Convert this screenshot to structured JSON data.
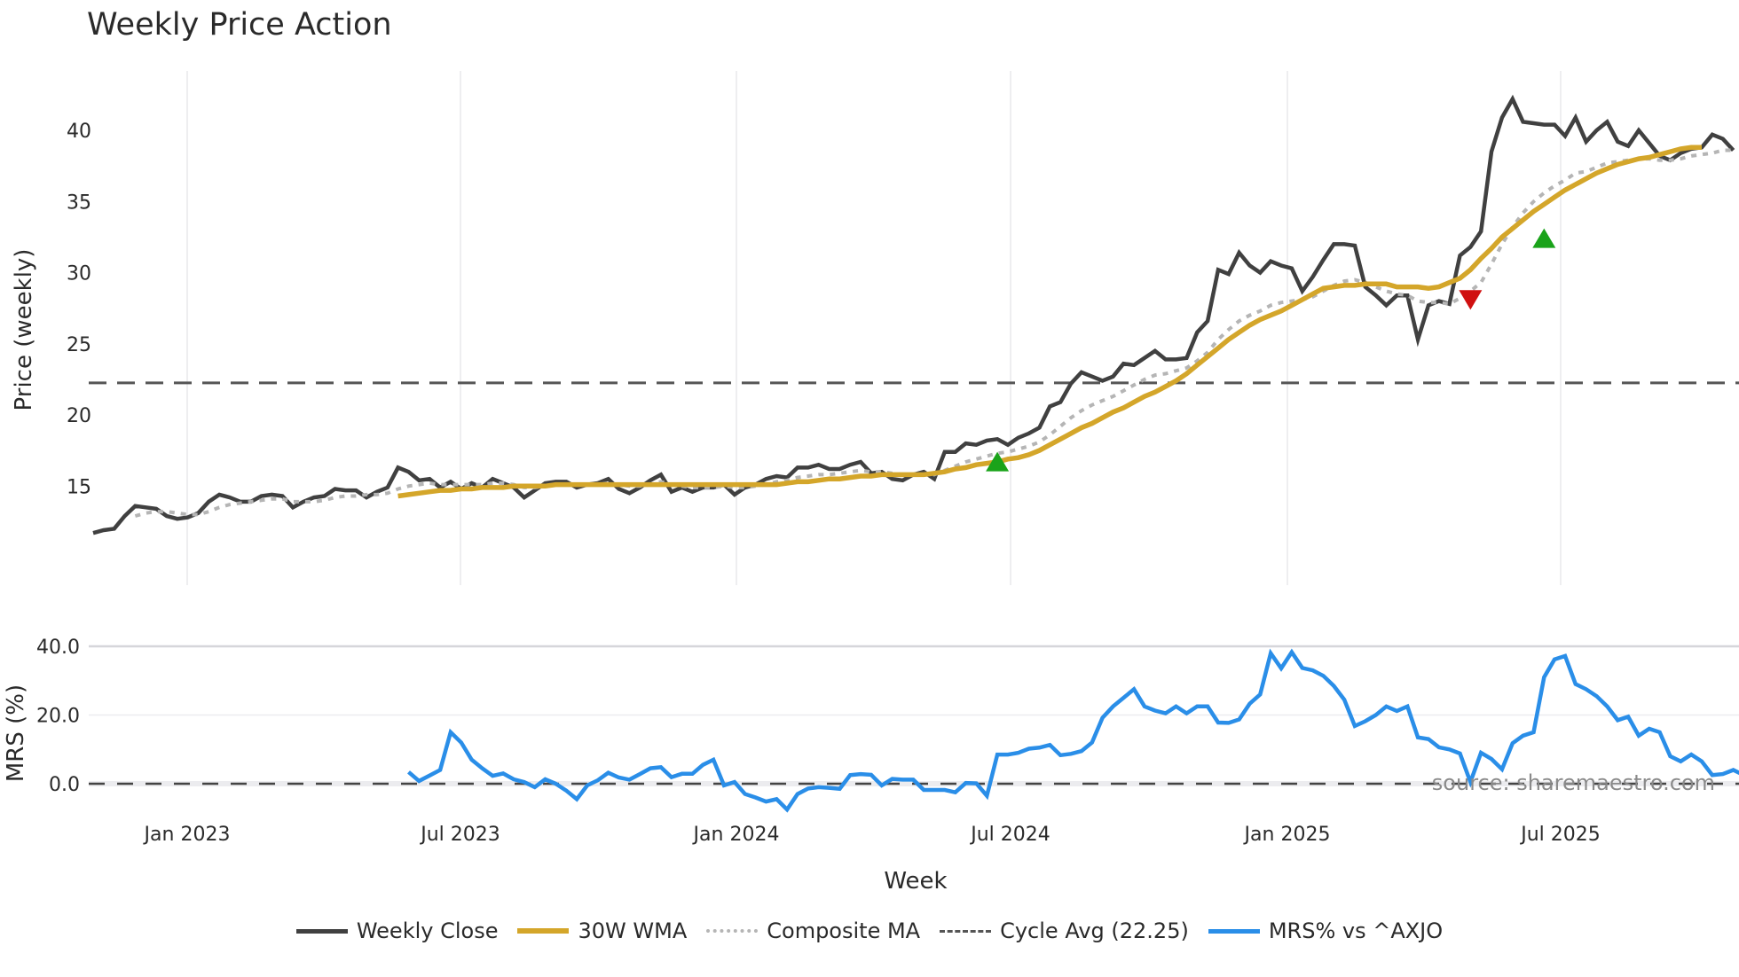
{
  "title": "Weekly Price Action",
  "price_panel": {
    "ylabel": "Price (weekly)",
    "yticks": [
      "40",
      "35",
      "30",
      "25",
      "20",
      "15"
    ],
    "ytick_values": [
      40,
      35,
      30,
      25,
      20,
      15
    ]
  },
  "mrs_panel": {
    "ylabel": "MRS (%)",
    "yticks": [
      "40.0",
      "20.0",
      "0.0"
    ],
    "ytick_values": [
      40,
      20,
      0
    ]
  },
  "xaxis": {
    "label": "Week",
    "ticks": [
      "Jan 2023",
      "Jul 2023",
      "Jan 2024",
      "Jul 2024",
      "Jan 2025",
      "Jul 2025"
    ]
  },
  "watermark": "source: sharemaestro.com",
  "legend": [
    {
      "label": "Weekly Close",
      "color": "#404040",
      "style": "solid"
    },
    {
      "label": "30W WMA",
      "color": "#d4a62a",
      "style": "solid"
    },
    {
      "label": "Composite MA",
      "color": "#b5b5b5",
      "style": "dotted"
    },
    {
      "label": "Cycle Avg (22.25)",
      "color": "#555555",
      "style": "dashed"
    },
    {
      "label": "MRS% vs ^AXJO",
      "color": "#2a8ee8",
      "style": "solid"
    }
  ],
  "colors": {
    "close": "#404040",
    "wma": "#d4a62a",
    "composite": "#b5b5b5",
    "cycle": "#555555",
    "mrs": "#2a8ee8",
    "buy_marker": "#1aa31a",
    "sell_marker": "#d01010",
    "grid": "#e8e8ec"
  },
  "chart_data": [
    {
      "type": "line",
      "title": "Weekly Price Action",
      "xlabel": "Week",
      "ylabel": "Price (weekly)",
      "ylim": [
        10.8,
        44
      ],
      "grid": true,
      "legend_position": "bottom",
      "x_ticks": [
        "Jan 2023",
        "Jul 2023",
        "Jan 2024",
        "Jul 2024",
        "Jan 2025",
        "Jul 2025"
      ],
      "x_start": "2022-10-31",
      "x_step": "1 week",
      "series": [
        {
          "name": "Weekly Close",
          "values": [
            11.7,
            11.9,
            12.0,
            12.9,
            13.6,
            13.5,
            13.4,
            12.9,
            12.7,
            12.8,
            13.1,
            13.9,
            14.4,
            14.2,
            13.9,
            13.9,
            14.3,
            14.4,
            14.3,
            13.5,
            13.9,
            14.2,
            14.3,
            14.8,
            14.7,
            14.7,
            14.2,
            14.6,
            14.9,
            16.3,
            16.0,
            15.4,
            15.5,
            14.9,
            15.3,
            14.8,
            15.2,
            14.9,
            15.5,
            15.2,
            14.9,
            14.2,
            14.7,
            15.2,
            15.3,
            15.3,
            14.9,
            15.1,
            15.2,
            15.5,
            14.8,
            14.5,
            14.9,
            15.4,
            15.8,
            14.6,
            14.9,
            14.6,
            14.9,
            14.9,
            15.1,
            14.4,
            14.9,
            15.1,
            15.5,
            15.7,
            15.6,
            16.3,
            16.3,
            16.5,
            16.2,
            16.2,
            16.5,
            16.7,
            15.9,
            16.0,
            15.5,
            15.4,
            15.8,
            16.0,
            15.5,
            17.4,
            17.4,
            18.0,
            17.9,
            18.2,
            18.3,
            17.9,
            18.4,
            18.7,
            19.1,
            20.6,
            20.9,
            22.2,
            23.0,
            22.7,
            22.4,
            22.7,
            23.6,
            23.5,
            24.0,
            24.5,
            23.9,
            23.9,
            24.0,
            25.8,
            26.6,
            30.2,
            29.9,
            31.4,
            30.5,
            30.0,
            30.8,
            30.5,
            30.3,
            28.7,
            29.7,
            30.9,
            32.0,
            32.0,
            31.9,
            29.0,
            28.4,
            27.7,
            28.4,
            28.4,
            25.3,
            27.7,
            28.0,
            27.8,
            31.2,
            31.8,
            32.9,
            38.5,
            40.9,
            42.2,
            40.6,
            40.5,
            40.4,
            40.4,
            39.6,
            40.9,
            39.2,
            40.0,
            40.6,
            39.2,
            38.9,
            40.0,
            39.1,
            38.2,
            37.9,
            38.4,
            38.7,
            38.8,
            39.7,
            39.4,
            38.6
          ]
        },
        {
          "name": "30W WMA",
          "values": [
            null,
            null,
            null,
            null,
            null,
            null,
            null,
            null,
            null,
            null,
            null,
            null,
            null,
            null,
            null,
            null,
            null,
            null,
            null,
            null,
            null,
            null,
            null,
            null,
            null,
            null,
            null,
            null,
            null,
            14.3,
            14.4,
            14.5,
            14.6,
            14.7,
            14.7,
            14.8,
            14.8,
            14.9,
            14.9,
            14.9,
            15.0,
            15.0,
            15.0,
            15.0,
            15.1,
            15.1,
            15.1,
            15.1,
            15.1,
            15.1,
            15.1,
            15.1,
            15.1,
            15.1,
            15.1,
            15.1,
            15.1,
            15.1,
            15.1,
            15.1,
            15.1,
            15.1,
            15.1,
            15.1,
            15.1,
            15.1,
            15.2,
            15.3,
            15.3,
            15.4,
            15.5,
            15.5,
            15.6,
            15.7,
            15.7,
            15.8,
            15.8,
            15.8,
            15.8,
            15.8,
            15.9,
            16.0,
            16.2,
            16.3,
            16.5,
            16.6,
            16.7,
            16.9,
            17.0,
            17.2,
            17.5,
            17.9,
            18.3,
            18.7,
            19.1,
            19.4,
            19.8,
            20.2,
            20.5,
            20.9,
            21.3,
            21.6,
            22.0,
            22.4,
            22.9,
            23.5,
            24.1,
            24.7,
            25.3,
            25.8,
            26.3,
            26.7,
            27.0,
            27.3,
            27.7,
            28.1,
            28.5,
            28.9,
            29.0,
            29.1,
            29.1,
            29.2,
            29.2,
            29.2,
            29.0,
            29.0,
            29.0,
            28.9,
            29.0,
            29.3,
            29.6,
            30.2,
            31.0,
            31.7,
            32.5,
            33.1,
            33.7,
            34.3,
            34.8,
            35.3,
            35.8,
            36.2,
            36.6,
            37.0,
            37.3,
            37.6,
            37.8,
            38.0,
            38.1,
            38.3,
            38.5,
            38.7,
            38.8,
            38.8
          ]
        },
        {
          "name": "Composite MA",
          "values": [
            null,
            null,
            null,
            null,
            12.9,
            13.1,
            13.2,
            13.2,
            13.1,
            13.0,
            13.0,
            13.2,
            13.5,
            13.7,
            13.8,
            13.9,
            14.0,
            14.1,
            14.1,
            13.9,
            13.9,
            13.9,
            14.0,
            14.2,
            14.3,
            14.3,
            14.4,
            14.4,
            14.5,
            14.8,
            15.0,
            15.1,
            15.2,
            15.1,
            15.1,
            15.1,
            15.1,
            15.1,
            15.2,
            15.2,
            15.1,
            14.9,
            14.9,
            15.0,
            15.1,
            15.1,
            15.1,
            15.1,
            15.1,
            15.2,
            15.1,
            15.0,
            15.0,
            15.1,
            15.3,
            15.1,
            15.0,
            14.9,
            14.9,
            14.9,
            15.0,
            14.9,
            14.9,
            15.0,
            15.1,
            15.3,
            15.4,
            15.6,
            15.7,
            15.8,
            15.8,
            15.9,
            16.0,
            16.1,
            16.0,
            16.0,
            15.9,
            15.8,
            15.8,
            15.8,
            15.8,
            16.1,
            16.4,
            16.7,
            16.9,
            17.1,
            17.3,
            17.4,
            17.6,
            17.8,
            18.1,
            18.6,
            19.2,
            19.8,
            20.3,
            20.7,
            21.0,
            21.3,
            21.7,
            22.1,
            22.5,
            22.8,
            22.9,
            23.1,
            23.3,
            23.8,
            24.4,
            25.3,
            26.0,
            26.6,
            27.0,
            27.3,
            27.7,
            27.9,
            28.0,
            28.1,
            28.3,
            28.7,
            29.1,
            29.4,
            29.5,
            29.3,
            29.0,
            28.7,
            28.5,
            28.4,
            28.0,
            27.9,
            27.9,
            27.8,
            28.2,
            28.7,
            29.3,
            30.6,
            32.0,
            33.2,
            34.2,
            35.0,
            35.6,
            36.1,
            36.5,
            37.0,
            37.1,
            37.4,
            37.7,
            37.8,
            37.9,
            38.0,
            38.0,
            37.9,
            37.9,
            38.0,
            38.2,
            38.3,
            38.4,
            38.6,
            38.6
          ]
        },
        {
          "name": "Cycle Avg (22.25)",
          "values": [
            22.25
          ]
        }
      ],
      "markers": [
        {
          "type": "buy",
          "shape": "triangle-up",
          "color": "#1aa31a",
          "week_index": 86,
          "value": 16.6
        },
        {
          "type": "sell",
          "shape": "triangle-down",
          "color": "#d01010",
          "week_index": 131,
          "value": 28.2
        },
        {
          "type": "buy",
          "shape": "triangle-up",
          "color": "#1aa31a",
          "week_index": 138,
          "value": 32.3
        }
      ]
    },
    {
      "type": "line",
      "title": "",
      "xlabel": "Week",
      "ylabel": "MRS (%)",
      "ylim": [
        -9,
        44
      ],
      "grid": true,
      "x_ticks": [
        "Jan 2023",
        "Jul 2023",
        "Jan 2024",
        "Jul 2024",
        "Jan 2025",
        "Jul 2025"
      ],
      "series": [
        {
          "name": "MRS% vs ^AXJO",
          "start_week_index": 30,
          "values": [
            3.4,
            0.8,
            2.4,
            4.0,
            15.0,
            12.0,
            7.0,
            4.5,
            2.3,
            3.0,
            1.3,
            0.5,
            -1.0,
            1.3,
            0.0,
            -2.0,
            -4.5,
            -0.5,
            1.0,
            3.2,
            1.8,
            1.2,
            2.8,
            4.5,
            4.8,
            1.9,
            2.9,
            2.9,
            5.5,
            7.0,
            -0.5,
            0.5,
            -3.0,
            -4.0,
            -5.2,
            -4.5,
            -7.5,
            -3.0,
            -1.4,
            -1.0,
            -1.2,
            -1.5,
            2.5,
            2.8,
            2.6,
            -0.5,
            1.4,
            1.2,
            1.2,
            -1.8,
            -1.8,
            -1.8,
            -2.5,
            0.2,
            0.1,
            -3.5,
            8.5,
            8.5,
            9.0,
            10.2,
            10.5,
            11.3,
            8.3,
            8.7,
            9.5,
            12.0,
            19.2,
            22.5,
            25.0,
            27.5,
            22.5,
            21.3,
            20.5,
            22.5,
            20.5,
            22.5,
            22.5,
            17.8,
            17.7,
            18.7,
            23.3,
            26.0,
            38.0,
            33.6,
            38.3,
            33.7,
            33.0,
            31.4,
            28.5,
            24.5,
            16.8,
            18.2,
            20.0,
            22.5,
            21.2,
            22.5,
            13.5,
            13.0,
            10.6,
            10.0,
            8.8,
            0.5,
            9.0,
            7.2,
            4.2,
            11.8,
            14.0,
            15.0,
            31.0,
            36.2,
            37.2,
            29.0,
            27.5,
            25.5,
            22.5,
            18.5,
            19.5,
            14.0,
            16.0,
            15.0,
            8.0,
            6.5,
            8.5,
            6.5,
            2.5,
            2.8,
            4.0,
            2.5,
            3.3,
            5.0,
            2.8,
            1.0
          ]
        },
        {
          "name": "Zero line",
          "values": [
            0
          ]
        }
      ]
    }
  ]
}
